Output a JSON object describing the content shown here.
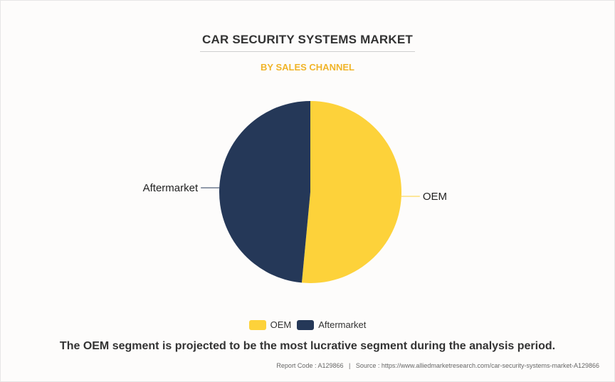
{
  "header": {
    "title": "CAR SECURITY SYSTEMS MARKET",
    "subtitle": "BY SALES CHANNEL"
  },
  "chart_data": {
    "type": "pie",
    "categories": [
      "OEM",
      "Aftermarket"
    ],
    "values": [
      51.5,
      48.5
    ],
    "colors": [
      "#fdd23a",
      "#253858"
    ],
    "legend_position": "bottom-center",
    "slice_labels_outside": true
  },
  "legend": {
    "items": [
      {
        "label": "OEM",
        "color": "#fdd23a"
      },
      {
        "label": "Aftermarket",
        "color": "#253858"
      }
    ]
  },
  "takeaway": "The OEM segment is projected to be the most lucrative segment during the analysis period.",
  "footer": {
    "report_code": "Report Code : A129866",
    "separator": "|",
    "source": "Source : https://www.alliedmarketresearch.com/car-security-systems-market-A129866"
  }
}
